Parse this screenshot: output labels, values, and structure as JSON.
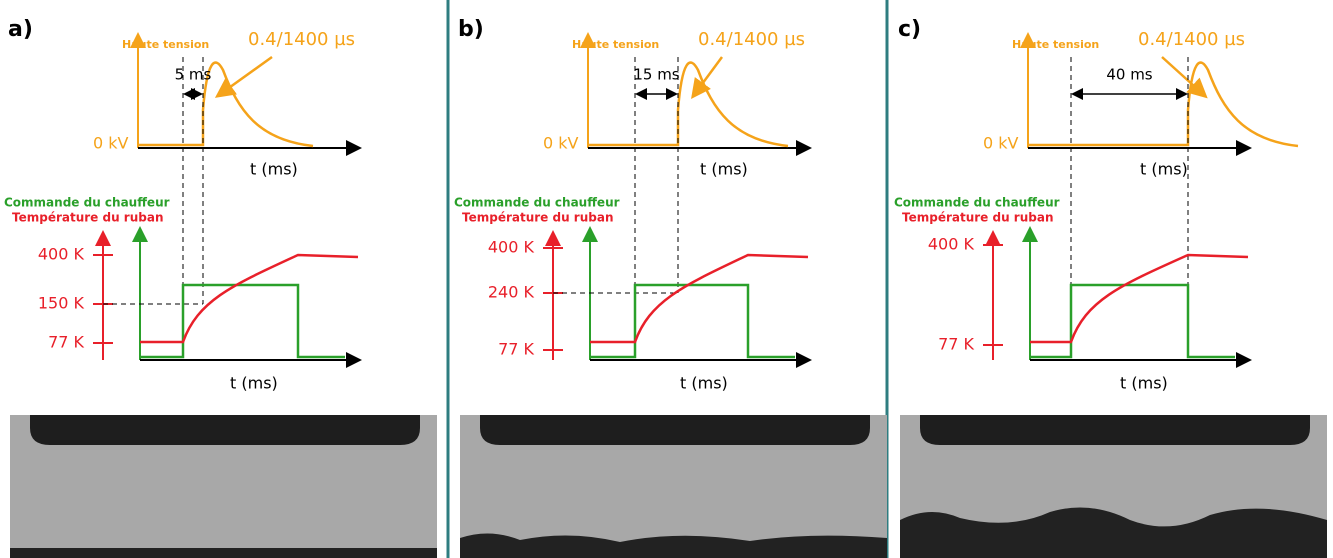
{
  "panels": [
    {
      "label": "a)",
      "hv_label": "Haute tension",
      "pulse": "0.4/1400 µs",
      "zero": "0 kV",
      "t_axis_top": "t (ms)",
      "delay": "5 ms",
      "heater": "Commande du chauffeur",
      "temp": "Température du ruban",
      "temps": [
        "400 K",
        "150 K",
        "77 K"
      ],
      "t_axis_bottom": "t (ms)"
    },
    {
      "label": "b)",
      "hv_label": "Haute tension",
      "pulse": "0.4/1400 µs",
      "zero": "0 kV",
      "t_axis_top": "t (ms)",
      "delay": "15 ms",
      "heater": "Commande du chauffeur",
      "temp": "Température du ruban",
      "temps": [
        "400 K",
        "240 K",
        "77 K"
      ],
      "t_axis_bottom": "t (ms)"
    },
    {
      "label": "c)",
      "hv_label": "Haute tension",
      "pulse": "0.4/1400 µs",
      "zero": "0 kV",
      "t_axis_top": "t (ms)",
      "delay": "40 ms",
      "heater": "Commande du chauffeur",
      "temp": "Température du ruban",
      "temps": [
        "400 K",
        "77 K"
      ],
      "t_axis_bottom": "t (ms)"
    }
  ]
}
